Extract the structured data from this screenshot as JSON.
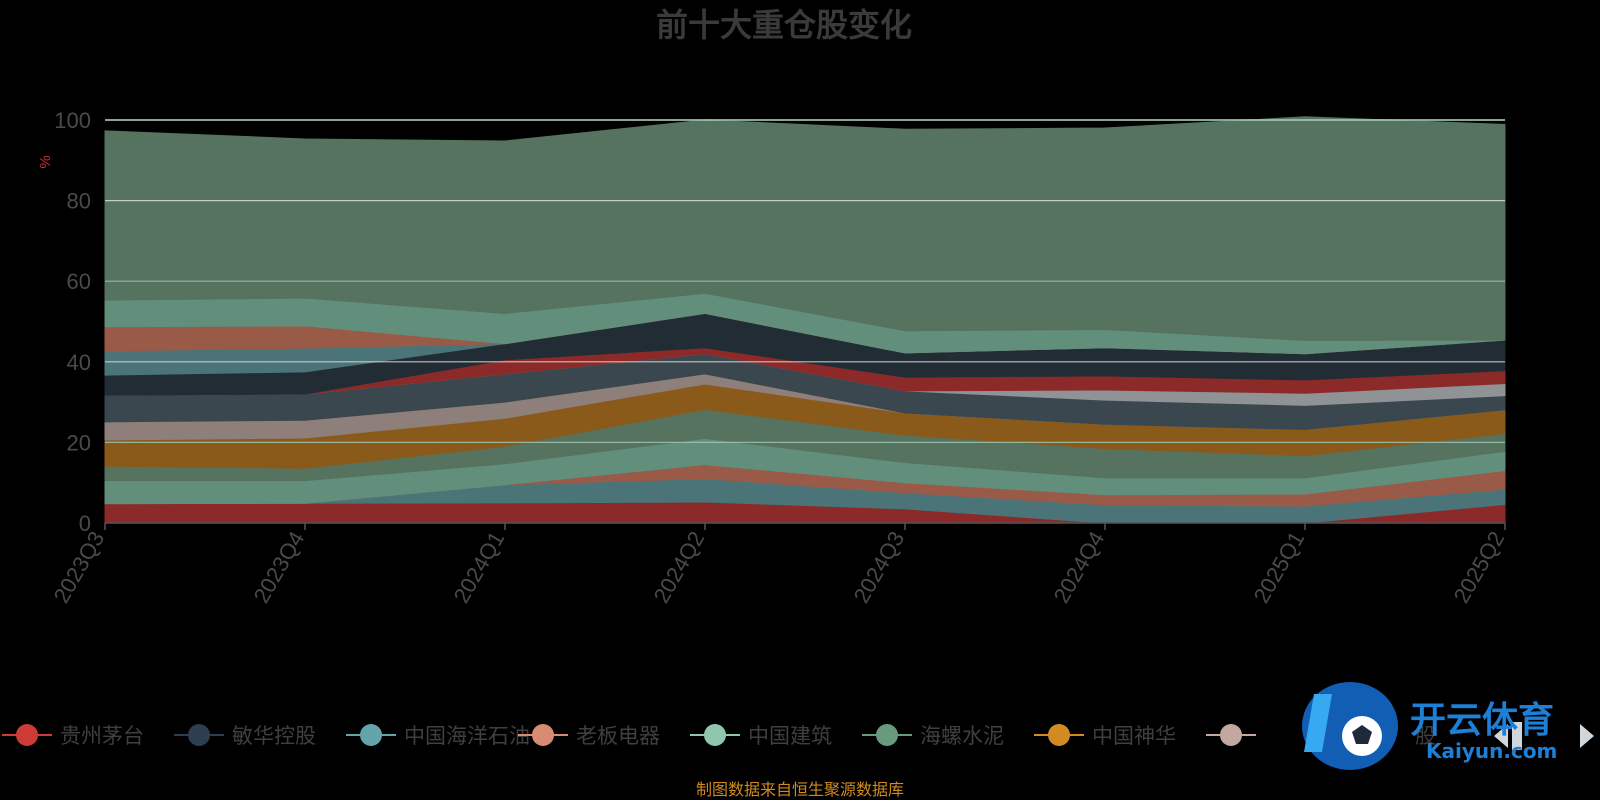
{
  "chart_data": {
    "type": "area",
    "stacked": true,
    "title": "前十大重仓股变化",
    "ylabel": "%",
    "ylim": [
      0,
      100
    ],
    "yticks": [
      0,
      20,
      40,
      60,
      80,
      100
    ],
    "grid": true,
    "legend_position": "bottom",
    "categories": [
      "2023Q3",
      "2023Q4",
      "2024Q1",
      "2024Q2",
      "2024Q3",
      "2024Q4",
      "2025Q1",
      "2025Q2"
    ],
    "series": [
      {
        "name": "贵州茅台",
        "color": "#8b2a28",
        "values": [
          4.8,
          4.9,
          5.0,
          5.2,
          3.5,
          0.0,
          0.0,
          4.6
        ]
      },
      {
        "name": "",
        "color": "#4a7478",
        "values": [
          0.0,
          0.0,
          4.5,
          5.8,
          4.0,
          4.5,
          4.2,
          3.8
        ]
      },
      {
        "name": "",
        "color": "#9a5a48",
        "values": [
          0.0,
          0.0,
          0.0,
          3.5,
          2.5,
          2.5,
          3.0,
          4.6
        ]
      },
      {
        "name": "",
        "color": "#628f7c",
        "values": [
          5.7,
          5.6,
          5.2,
          6.5,
          5.0,
          4.2,
          4.0,
          4.8
        ]
      },
      {
        "name": "",
        "color": "#55735f",
        "values": [
          3.6,
          3.1,
          4.3,
          7.2,
          6.8,
          7.3,
          5.5,
          4.4
        ]
      },
      {
        "name": "",
        "color": "#8a5a1a",
        "values": [
          6.5,
          7.5,
          7.0,
          6.3,
          5.5,
          6.0,
          6.5,
          5.9
        ]
      },
      {
        "name": "",
        "color": "#8e7f7a",
        "values": [
          4.5,
          4.4,
          4.0,
          2.5,
          0.0,
          0.0,
          0.0,
          0.0
        ]
      },
      {
        "name": "",
        "color": "#3a474f",
        "values": [
          6.6,
          6.5,
          7.0,
          5.0,
          5.5,
          6.0,
          6.0,
          3.5
        ]
      },
      {
        "name": "",
        "color": "#8f9396",
        "values": [
          0.0,
          0.0,
          0.0,
          0.0,
          0.0,
          2.5,
          3.0,
          3.0
        ]
      },
      {
        "name": "",
        "color": "#8b2a28",
        "values": [
          0.0,
          0.0,
          3.5,
          1.5,
          3.4,
          3.5,
          3.3,
          3.2
        ]
      },
      {
        "name": "",
        "color": "#222c35",
        "values": [
          5.0,
          5.5,
          4.0,
          8.5,
          6.0,
          7.0,
          6.5,
          7.6
        ]
      },
      {
        "name": "",
        "color": "#4a7478",
        "values": [
          6.0,
          5.9,
          0.0,
          0.0,
          0.0,
          0.0,
          0.0,
          0.0
        ]
      },
      {
        "name": "",
        "color": "#9a5a48",
        "values": [
          6.0,
          5.5,
          0.0,
          0.0,
          0.0,
          0.0,
          0.0,
          0.0
        ]
      },
      {
        "name": "",
        "color": "#628f7c",
        "values": [
          6.6,
          6.9,
          7.5,
          5.0,
          5.5,
          4.5,
          3.3,
          0.0
        ]
      },
      {
        "name": "",
        "color": "#55735f",
        "values": [
          42.0,
          39.5,
          42.8,
          43.0,
          50.0,
          50.0,
          55.5,
          53.5
        ]
      }
    ]
  },
  "legend": {
    "items": [
      {
        "label": "贵州茅台",
        "color": "#cc3b35"
      },
      {
        "label": "敏华控股",
        "color": "#2c3e50"
      },
      {
        "label": "中国海洋石油",
        "color": "#63a3aa"
      },
      {
        "label": "老板电器",
        "color": "#d98a73"
      },
      {
        "label": "中国建筑",
        "color": "#8fc7ae"
      },
      {
        "label": "海螺水泥",
        "color": "#6a9a7e"
      },
      {
        "label": "中国神华",
        "color": "#d18b22"
      },
      {
        "label": "",
        "color": "#c2a89f"
      }
    ],
    "last_partial_text": "股"
  },
  "source_note": "制图数据来自恒生聚源数据库",
  "watermark": {
    "main_text": "开云体育",
    "sub_text": "Kaiyun.com"
  }
}
